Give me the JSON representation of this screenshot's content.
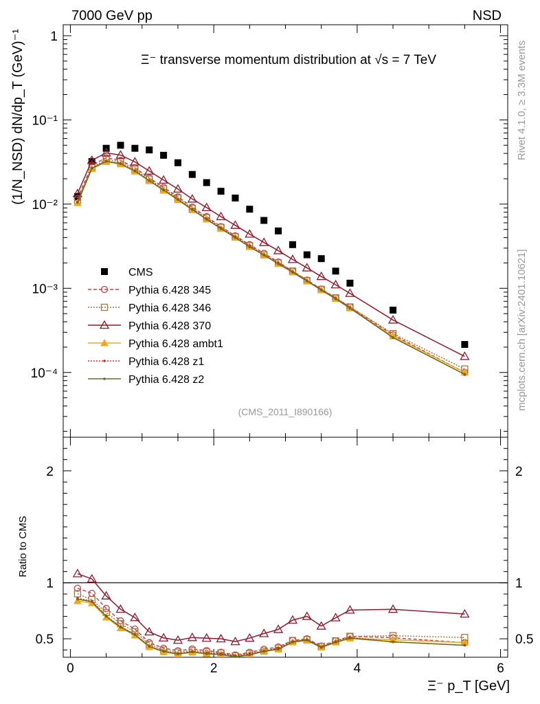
{
  "header": {
    "left": "7000 GeV pp",
    "right": "NSD"
  },
  "side_text": {
    "rivet": "Rivet 4.1.0, ≥ 3.3M events",
    "mcplots": "mcplots.cern.ch [arXiv:2401.10621]"
  },
  "chart_data": {
    "type": "scatter",
    "title": "Ξ⁻ transverse momentum distribution at √s = 7 TeV",
    "analysis_id": "(CMS_2011_I890166)",
    "xlabel": "Ξ⁻ p_T [GeV]",
    "ylabel": "(1/N_NSD) dN/dp_T (GeV)⁻¹",
    "ratio_ylabel": "Ratio to CMS",
    "xlim": [
      -0.1,
      6.1
    ],
    "ylim": [
      1.7e-05,
      1.35
    ],
    "ratio_ylim": [
      0.335,
      2.3
    ],
    "yscale": "log",
    "x_ticks": [
      0,
      2,
      4,
      6
    ],
    "x_tick_labels": [
      "0",
      "2",
      "4",
      "6"
    ],
    "y_ticks": [
      1,
      0.1,
      0.01,
      0.001,
      0.0001
    ],
    "y_tick_labels": [
      "1",
      "10⁻¹",
      "10⁻²",
      "10⁻³",
      "10⁻⁴"
    ],
    "ratio_ticks": [
      0.5,
      1,
      2
    ],
    "ratio_tick_labels": [
      "0.5",
      "1",
      "2"
    ],
    "x": [
      0.1,
      0.3,
      0.5,
      0.7,
      0.9,
      1.1,
      1.3,
      1.5,
      1.7,
      1.9,
      2.1,
      2.3,
      2.5,
      2.7,
      2.9,
      3.1,
      3.3,
      3.5,
      3.7,
      3.9,
      4.5,
      5.5
    ],
    "series": [
      {
        "name": "CMS",
        "color": "#000000",
        "marker": "square",
        "dash": "",
        "values": [
          0.0123,
          0.032,
          0.046,
          0.05,
          0.046,
          0.044,
          0.038,
          0.031,
          0.0225,
          0.018,
          0.0142,
          0.0118,
          0.0087,
          0.0064,
          0.0048,
          0.0033,
          0.0025,
          0.00225,
          0.0016,
          0.00115,
          0.00055,
          0.000215
        ]
      },
      {
        "name": "Pythia 6.428 345",
        "color": "#b84552",
        "marker": "circle",
        "dash": "5,3",
        "values": [
          0.0117,
          0.029,
          0.0355,
          0.033,
          0.027,
          0.0205,
          0.0158,
          0.0122,
          0.0092,
          0.0071,
          0.0054,
          0.0042,
          0.0033,
          0.0026,
          0.00205,
          0.0016,
          0.00125,
          0.00098,
          0.00077,
          0.0006,
          0.00028,
          0.0001
        ]
      },
      {
        "name": "Pythia 6.428 346",
        "color": "#a3753f",
        "marker": "square-open",
        "dash": "2,2",
        "values": [
          0.0111,
          0.0272,
          0.0338,
          0.0317,
          0.0259,
          0.0198,
          0.0152,
          0.0118,
          0.0089,
          0.0069,
          0.0053,
          0.0041,
          0.0032,
          0.0025,
          0.002,
          0.0016,
          0.00123,
          0.00097,
          0.00077,
          0.0006,
          0.00029,
          0.00011
        ]
      },
      {
        "name": "Pythia 6.428 370",
        "color": "#8b1a2c",
        "marker": "triangle",
        "dash": "",
        "values": [
          0.0133,
          0.0331,
          0.0406,
          0.0382,
          0.0317,
          0.0247,
          0.0193,
          0.0151,
          0.0115,
          0.0091,
          0.0071,
          0.0056,
          0.0044,
          0.0035,
          0.0028,
          0.0022,
          0.00175,
          0.00138,
          0.0011,
          0.00087,
          0.00042,
          0.000155
        ]
      },
      {
        "name": "Pythia 6.428 ambt1",
        "color": "#f0a818",
        "marker": "triangle-filled",
        "dash": "",
        "values": [
          0.0103,
          0.0262,
          0.0318,
          0.0298,
          0.0244,
          0.0188,
          0.0145,
          0.0112,
          0.0085,
          0.0066,
          0.0051,
          0.004,
          0.0031,
          0.0025,
          0.00195,
          0.00155,
          0.00121,
          0.00095,
          0.00075,
          0.00058,
          0.00027,
          0.0001
        ]
      },
      {
        "name": "Pythia 6.428 z1",
        "color": "#d42a1c",
        "marker": "dot",
        "dash": "2,2",
        "values": [
          0.0106,
          0.0268,
          0.0324,
          0.0304,
          0.0249,
          0.0191,
          0.0148,
          0.0114,
          0.0087,
          0.0067,
          0.0052,
          0.0041,
          0.0032,
          0.0025,
          0.002,
          0.00157,
          0.00123,
          0.00096,
          0.00076,
          0.00059,
          0.00026,
          9.5e-05
        ]
      },
      {
        "name": "Pythia 6.428 z2",
        "color": "#6b6a1c",
        "marker": "dot",
        "dash": "",
        "values": [
          0.0105,
          0.0266,
          0.0322,
          0.0302,
          0.0247,
          0.019,
          0.0147,
          0.0113,
          0.0086,
          0.0066,
          0.0051,
          0.004,
          0.0031,
          0.00248,
          0.00195,
          0.00155,
          0.00122,
          0.00095,
          0.00075,
          0.00058,
          0.00026,
          9.5e-05
        ]
      }
    ]
  }
}
